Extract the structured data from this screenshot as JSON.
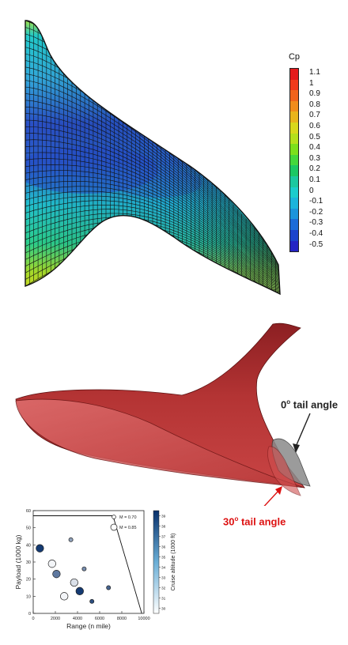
{
  "colorbar": {
    "title": "Cp",
    "labels": [
      "1.1",
      "1",
      "0.9",
      "0.8",
      "0.7",
      "0.6",
      "0.5",
      "0.4",
      "0.3",
      "0.2",
      "0.1",
      "0",
      "-0.1",
      "-0.2",
      "-0.3",
      "-0.4",
      "-0.5"
    ],
    "colors": [
      "#e41a1c",
      "#f03a1c",
      "#f0641c",
      "#f08c1c",
      "#e8b41c",
      "#d8d81c",
      "#b4e01c",
      "#7ce01c",
      "#44d83c",
      "#1cc864",
      "#1cc8a0",
      "#1ccccc",
      "#1cb4dc",
      "#1c94dc",
      "#1c6cd8",
      "#1c44cc",
      "#2424c4"
    ]
  },
  "annotations": {
    "tail0": {
      "angle": "0",
      "deg": "o",
      "text": " tail angle",
      "color": "#222222"
    },
    "tail30": {
      "angle": "30",
      "deg": "o",
      "text": " tail angle",
      "color": "#dd1111"
    }
  },
  "chart_data": {
    "type": "scatter",
    "xlabel": "Range (n mile)",
    "ylabel": "Payload (1000 kg)",
    "xlim": [
      0,
      10000
    ],
    "ylim": [
      0,
      60
    ],
    "xticks": [
      "0",
      "2000",
      "4000",
      "6000",
      "8000",
      "10000"
    ],
    "yticks": [
      "0",
      "10",
      "20",
      "30",
      "40",
      "50",
      "60"
    ],
    "colorbar": {
      "label": "Cruise altitude (1000 ft)",
      "ticks": [
        "30",
        "31",
        "32",
        "33",
        "34",
        "35",
        "36",
        "37",
        "38",
        "39"
      ],
      "range": [
        29.5,
        39.5
      ]
    },
    "legend": {
      "placement": "top-right",
      "entries": [
        {
          "label": "M = 0.70",
          "size": "small"
        },
        {
          "label": "M = 0.85",
          "size": "large"
        }
      ]
    },
    "boundary": {
      "x": [
        0,
        7200,
        8800,
        9800,
        9800
      ],
      "y": [
        57,
        57,
        22,
        0,
        0
      ]
    },
    "points": [
      {
        "x": 600,
        "y": 38,
        "alt": 39,
        "mach": 0.85
      },
      {
        "x": 1700,
        "y": 29,
        "alt": 30,
        "mach": 0.85
      },
      {
        "x": 2100,
        "y": 23,
        "alt": 36,
        "mach": 0.85
      },
      {
        "x": 2800,
        "y": 10,
        "alt": 30,
        "mach": 0.85
      },
      {
        "x": 3400,
        "y": 43,
        "alt": 34,
        "mach": 0.7
      },
      {
        "x": 3700,
        "y": 18,
        "alt": 31,
        "mach": 0.85
      },
      {
        "x": 4200,
        "y": 13,
        "alt": 39,
        "mach": 0.85
      },
      {
        "x": 4600,
        "y": 26,
        "alt": 35,
        "mach": 0.7
      },
      {
        "x": 5300,
        "y": 7,
        "alt": 38,
        "mach": 0.7
      },
      {
        "x": 6800,
        "y": 15,
        "alt": 37,
        "mach": 0.7
      }
    ]
  }
}
